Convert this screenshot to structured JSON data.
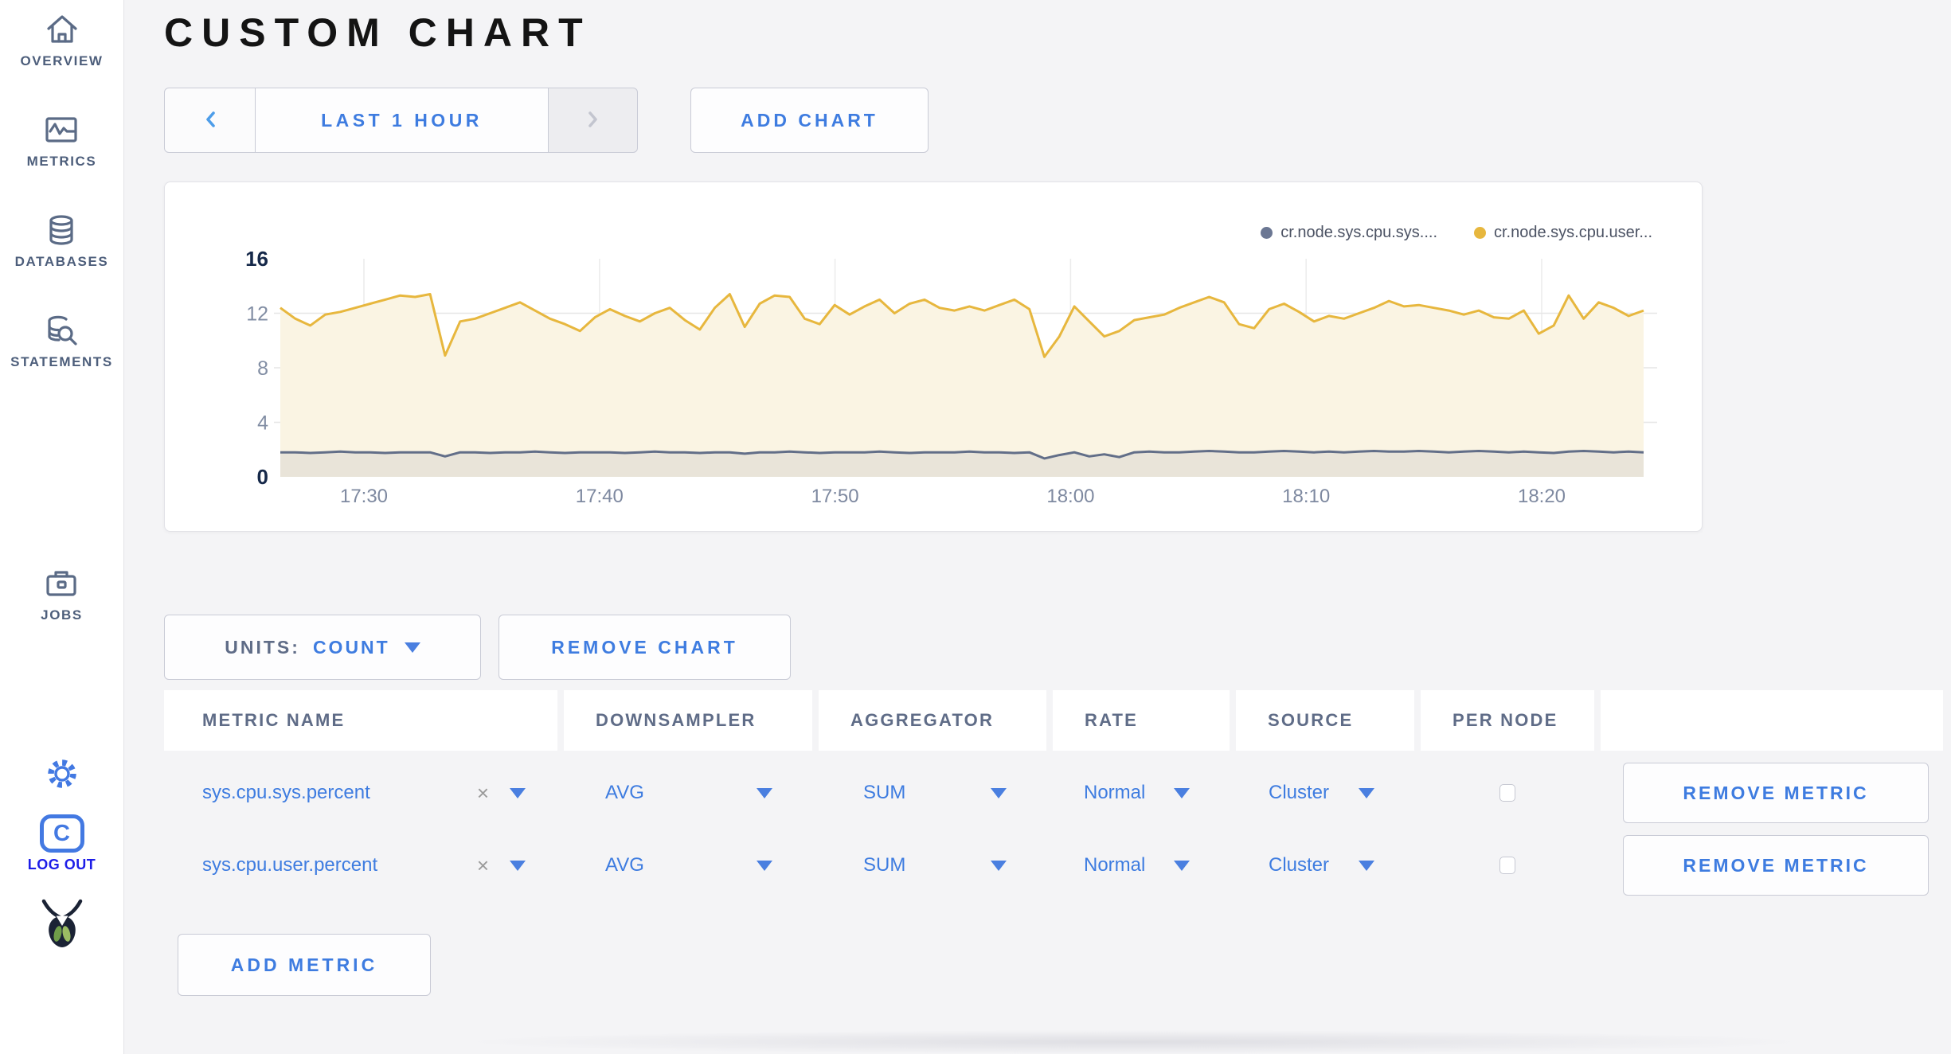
{
  "colors": {
    "accent": "#3e7ce0",
    "logout_blue": "#1d1de8",
    "sidebar_slate": "#5b6b86"
  },
  "sidebar": {
    "items": [
      {
        "label": "OVERVIEW"
      },
      {
        "label": "METRICS"
      },
      {
        "label": "DATABASES"
      },
      {
        "label": "STATEMENTS"
      },
      {
        "label": "JOBS"
      }
    ],
    "logout_label": "LOG OUT",
    "c_badge_letter": "C"
  },
  "header": {
    "title": "CUSTOM CHART"
  },
  "toolbar": {
    "time_range_label": "LAST 1 HOUR",
    "add_chart_label": "ADD CHART"
  },
  "chart_controls": {
    "units_label": "UNITS:",
    "units_value": "COUNT",
    "remove_chart_label": "REMOVE CHART",
    "add_metric_label": "ADD METRIC"
  },
  "metrics_table": {
    "columns": [
      "METRIC NAME",
      "DOWNSAMPLER",
      "AGGREGATOR",
      "RATE",
      "SOURCE",
      "PER NODE",
      ""
    ],
    "rows": [
      {
        "metric_name": "sys.cpu.sys.percent",
        "clear": "×",
        "downsampler": "AVG",
        "aggregator": "SUM",
        "rate": "Normal",
        "source": "Cluster",
        "per_node_checked": false,
        "remove_label": "REMOVE METRIC"
      },
      {
        "metric_name": "sys.cpu.user.percent",
        "clear": "×",
        "downsampler": "AVG",
        "aggregator": "SUM",
        "rate": "Normal",
        "source": "Cluster",
        "per_node_checked": false,
        "remove_label": "REMOVE METRIC"
      }
    ]
  },
  "chart_data": {
    "type": "line",
    "legend": [
      {
        "name": "cr.node.sys.cpu.sys....",
        "color": "#6b7793"
      },
      {
        "name": "cr.node.sys.cpu.user...",
        "color": "#e7b73e"
      }
    ],
    "x_ticks": [
      "17:30",
      "17:40",
      "17:50",
      "18:00",
      "18:10",
      "18:20"
    ],
    "y_ticks": [
      0,
      4,
      8,
      12,
      16
    ],
    "ylim": [
      0,
      16
    ],
    "grid": true,
    "legend_position": "top-right",
    "series": [
      {
        "name": "cr.node.sys.cpu.user...",
        "color": "#e7b73e",
        "fill": "#faf4e3",
        "values": [
          12.4,
          11.6,
          11.1,
          11.9,
          12.1,
          12.4,
          12.7,
          13.0,
          13.3,
          13.2,
          13.4,
          8.9,
          11.4,
          11.6,
          12.0,
          12.4,
          12.8,
          12.2,
          11.6,
          11.2,
          10.7,
          11.7,
          12.3,
          11.8,
          11.4,
          12.0,
          12.4,
          11.5,
          10.8,
          12.4,
          13.4,
          11.0,
          12.7,
          13.3,
          13.2,
          11.6,
          11.2,
          12.6,
          11.9,
          12.5,
          13.0,
          12.0,
          12.7,
          13.0,
          12.4,
          12.2,
          12.5,
          12.2,
          12.6,
          13.0,
          12.3,
          8.8,
          10.3,
          12.5,
          11.4,
          10.3,
          10.7,
          11.5,
          11.7,
          11.9,
          12.4,
          12.8,
          13.2,
          12.8,
          11.2,
          10.9,
          12.3,
          12.7,
          12.1,
          11.4,
          11.8,
          11.6,
          12.0,
          12.4,
          12.9,
          12.5,
          12.6,
          12.4,
          12.2,
          11.9,
          12.2,
          11.7,
          11.6,
          12.2,
          10.5,
          11.1,
          13.3,
          11.6,
          12.8,
          12.4,
          11.8,
          12.2
        ]
      },
      {
        "name": "cr.node.sys.cpu.sys....",
        "color": "#626e88",
        "fill": "#e9e4d9",
        "values": [
          1.8,
          1.8,
          1.75,
          1.8,
          1.85,
          1.8,
          1.8,
          1.75,
          1.8,
          1.8,
          1.8,
          1.5,
          1.8,
          1.8,
          1.75,
          1.8,
          1.8,
          1.85,
          1.8,
          1.75,
          1.8,
          1.8,
          1.8,
          1.75,
          1.8,
          1.85,
          1.8,
          1.8,
          1.75,
          1.8,
          1.8,
          1.7,
          1.8,
          1.8,
          1.85,
          1.8,
          1.75,
          1.8,
          1.8,
          1.8,
          1.85,
          1.8,
          1.75,
          1.8,
          1.8,
          1.8,
          1.85,
          1.8,
          1.8,
          1.75,
          1.8,
          1.35,
          1.6,
          1.8,
          1.5,
          1.65,
          1.45,
          1.8,
          1.85,
          1.8,
          1.8,
          1.85,
          1.9,
          1.85,
          1.8,
          1.8,
          1.85,
          1.9,
          1.85,
          1.8,
          1.85,
          1.8,
          1.85,
          1.9,
          1.85,
          1.85,
          1.9,
          1.85,
          1.8,
          1.85,
          1.9,
          1.85,
          1.8,
          1.85,
          1.8,
          1.75,
          1.85,
          1.9,
          1.85,
          1.8,
          1.85,
          1.8
        ]
      }
    ]
  }
}
